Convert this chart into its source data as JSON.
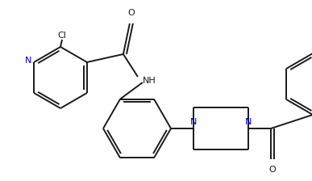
{
  "bg_color": "#ffffff",
  "line_color": "#1a1a1a",
  "n_color": "#0000cc",
  "lw": 1.4,
  "figsize": [
    3.87,
    2.24
  ],
  "dpi": 100,
  "xlim": [
    0,
    387
  ],
  "ylim": [
    0,
    224
  ]
}
